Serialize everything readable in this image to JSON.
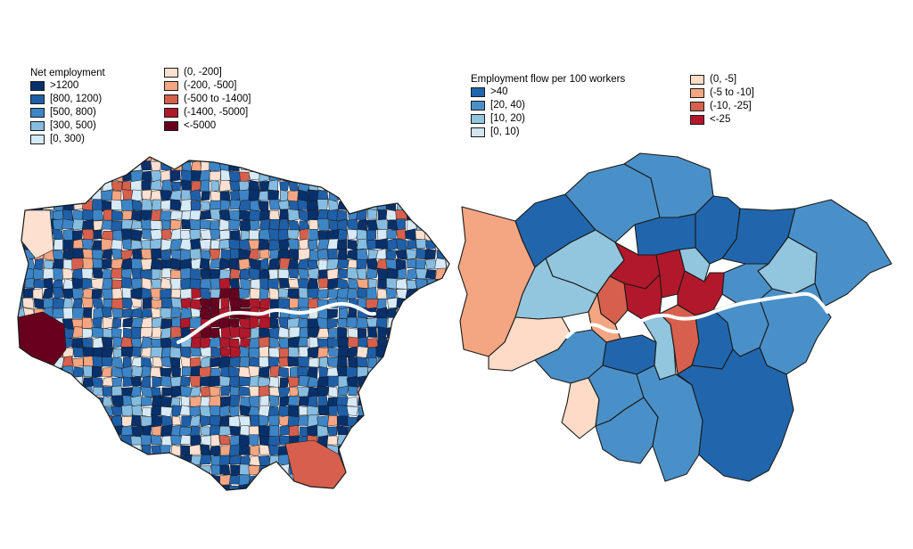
{
  "left_map": {
    "legend_title": "Net employment",
    "positive_classes": [
      {
        "label": ">1200",
        "color": "#08306b"
      },
      {
        "label": "[800, 1200)",
        "color": "#1f5fa8"
      },
      {
        "label": "[500, 800)",
        "color": "#3d85c6"
      },
      {
        "label": "[300, 500)",
        "color": "#86bce0"
      },
      {
        "label": "[0, 300)",
        "color": "#d6e9f6"
      }
    ],
    "negative_classes": [
      {
        "label": "(0, -200]",
        "color": "#fde0d0"
      },
      {
        "label": "(-200, -500]",
        "color": "#f4a582"
      },
      {
        "label": "(-500 to -1400]",
        "color": "#d6604d"
      },
      {
        "label": "(-1400, -5000]",
        "color": "#b2182b"
      },
      {
        "label": "<-5000",
        "color": "#67001f"
      }
    ]
  },
  "right_map": {
    "legend_title": "Employment flow per 100 workers",
    "positive_classes": [
      {
        "label": ">40",
        "color": "#2166ac"
      },
      {
        "label": "[20, 40)",
        "color": "#4a90c8"
      },
      {
        "label": "[10, 20)",
        "color": "#92c5de"
      },
      {
        "label": "[0, 10)",
        "color": "#d1e5f0"
      }
    ],
    "negative_classes": [
      {
        "label": "(0, -5]",
        "color": "#fddbc7"
      },
      {
        "label": "(-5 to -10]",
        "color": "#f4a582"
      },
      {
        "label": "(-10, -25]",
        "color": "#d6604d"
      },
      {
        "label": "<-25",
        "color": "#b2182b"
      }
    ]
  },
  "colors": {
    "river": "#ffffff",
    "border": "#1a1a1a"
  }
}
